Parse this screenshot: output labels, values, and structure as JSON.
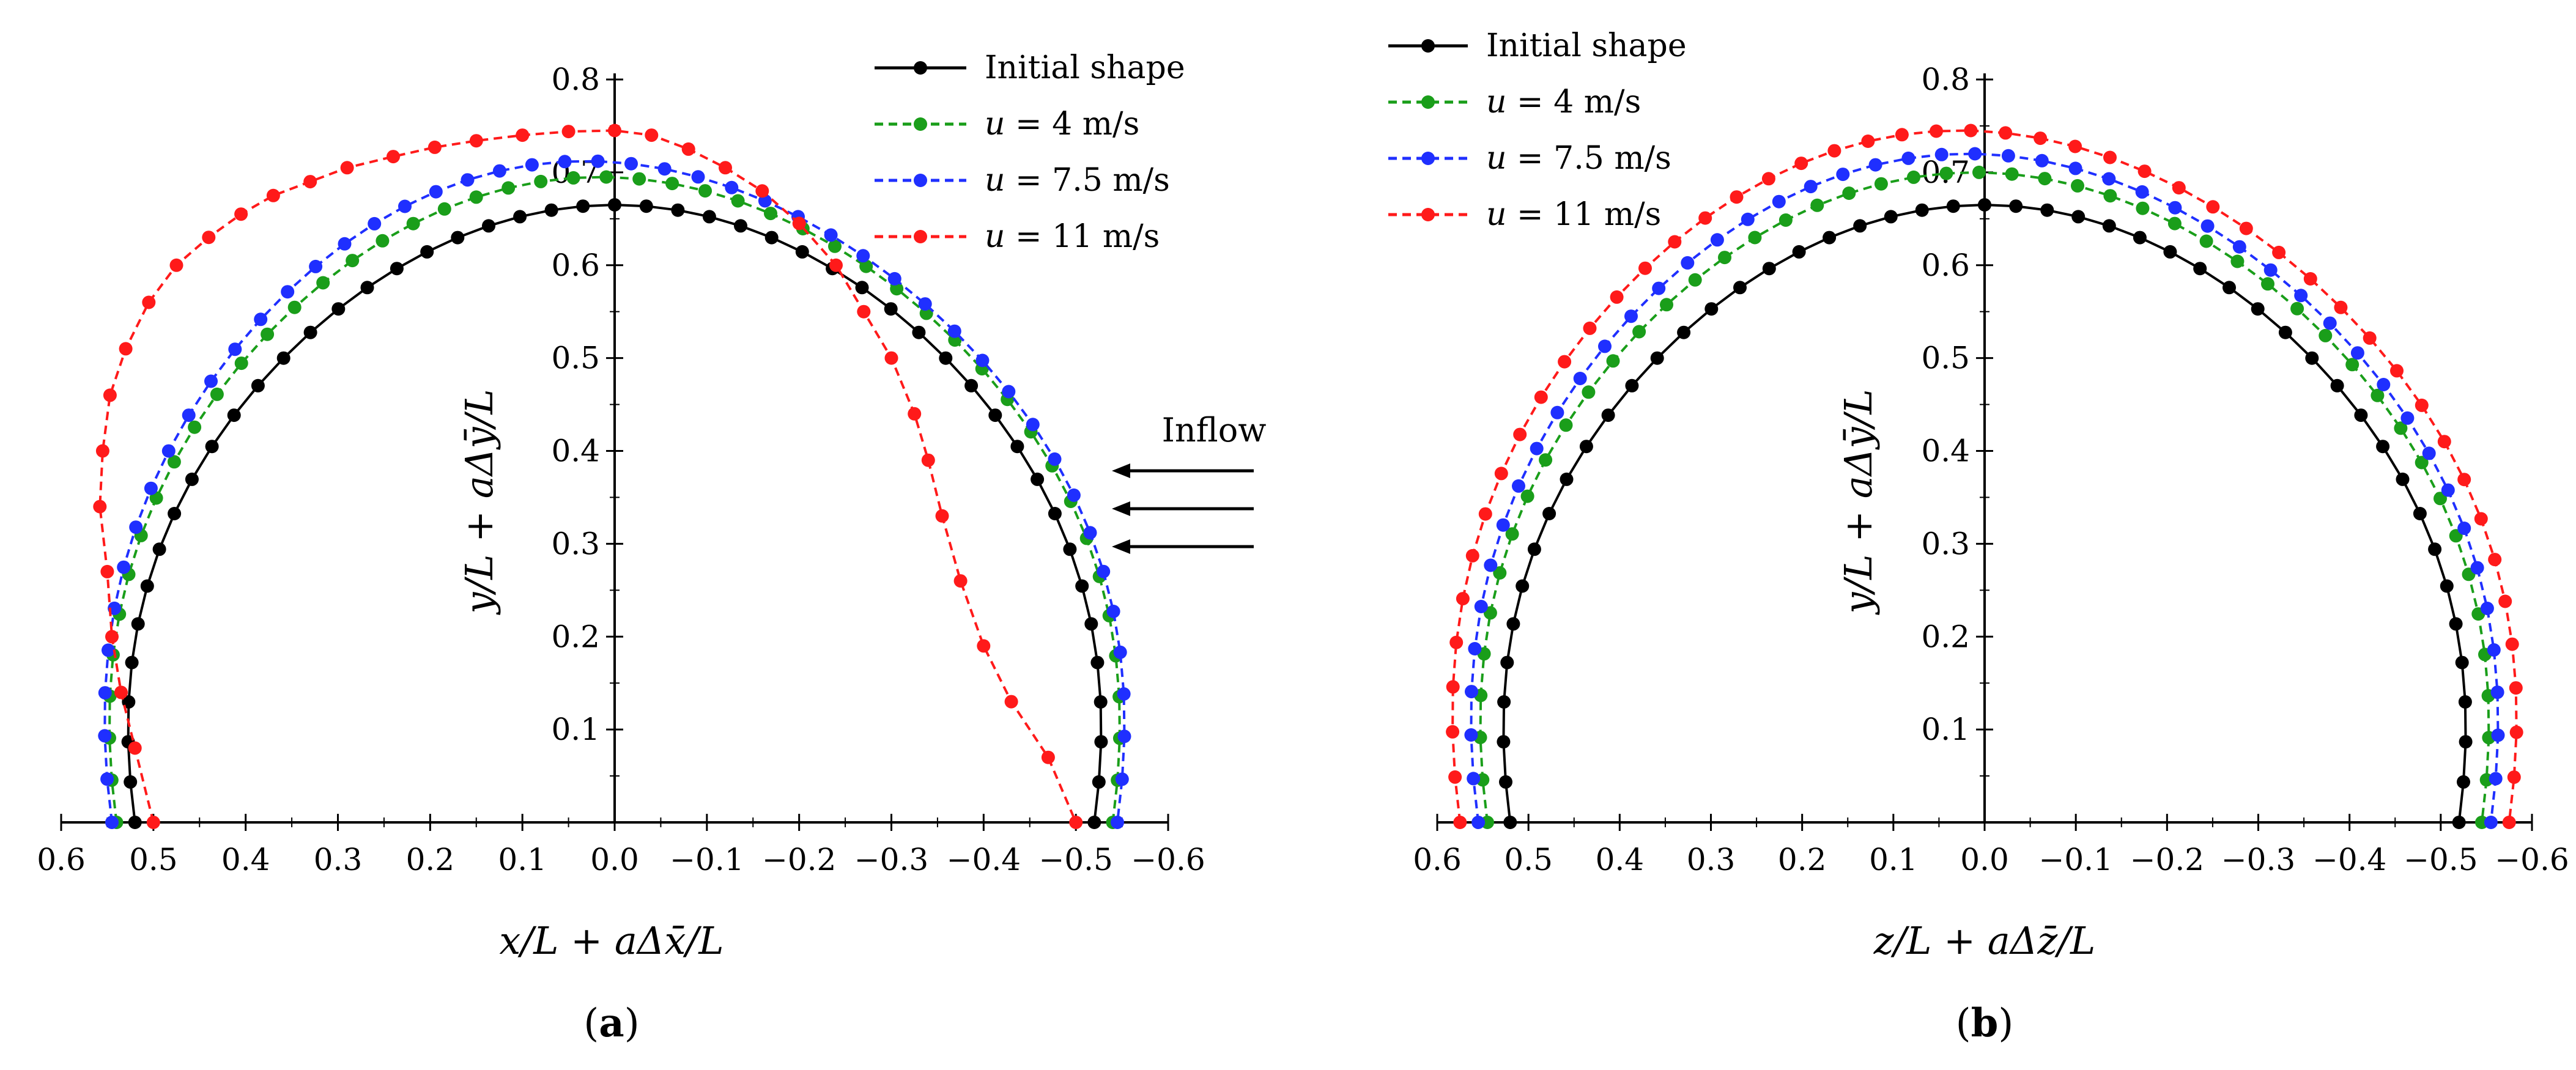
{
  "chart_data": [
    {
      "panel": "a",
      "type": "line",
      "caption_open": "(",
      "caption_letter": "a",
      "caption_close": ")",
      "xlabel": "x/L + aΔx̄/L",
      "ylabel": "y/L + aΔȳ/L",
      "xlim": [
        0.6,
        -0.6
      ],
      "ylim": [
        0,
        0.8
      ],
      "x_direction": "reversed",
      "x_ticks": [
        "0.6",
        "0.5",
        "0.4",
        "0.3",
        "0.2",
        "0.1",
        "0.0",
        "−0.1",
        "−0.2",
        "−0.3",
        "−0.4",
        "−0.5",
        "−0.6"
      ],
      "y_ticks": [
        "0.1",
        "0.2",
        "0.3",
        "0.4",
        "0.5",
        "0.6",
        "0.7",
        "0.8"
      ],
      "y_tick_values": [
        0.1,
        0.2,
        0.3,
        0.4,
        0.5,
        0.6,
        0.7,
        0.8
      ],
      "legend_position": "top-right",
      "annotation": {
        "text": "Inflow",
        "arrows": 3,
        "direction": "left"
      },
      "series": [
        {
          "name": "Initial shape",
          "color": "#000000",
          "style": "solid",
          "model": {
            "type": "arc",
            "r": 0.52,
            "ry": 0.665,
            "bulge": 0
          }
        },
        {
          "name": "u = 4 m/s",
          "color": "#1a9e1a",
          "style": "dashed",
          "model": {
            "type": "arc",
            "r": 0.54,
            "ry": 0.695,
            "bulge": 0.03
          }
        },
        {
          "name": "u = 7.5 m/s",
          "color": "#1f2fff",
          "style": "dashed",
          "model": {
            "type": "arc",
            "r": 0.545,
            "ry": 0.712,
            "bulge": 0.06
          }
        },
        {
          "name": "u = 11 m/s",
          "color": "#ff1a1a",
          "style": "dashed",
          "model": {
            "type": "waypoints"
          },
          "x": [
            0.5,
            0.52,
            0.535,
            0.545,
            0.55,
            0.558,
            0.555,
            0.547,
            0.53,
            0.505,
            0.475,
            0.44,
            0.405,
            0.37,
            0.33,
            0.29,
            0.24,
            0.195,
            0.15,
            0.1,
            0.05,
            0.0,
            -0.04,
            -0.08,
            -0.12,
            -0.16,
            -0.2,
            -0.24,
            -0.27,
            -0.3,
            -0.325,
            -0.34,
            -0.355,
            -0.375,
            -0.4,
            -0.43,
            -0.47,
            -0.5
          ],
          "y": [
            0.0,
            0.08,
            0.14,
            0.2,
            0.27,
            0.34,
            0.4,
            0.46,
            0.51,
            0.56,
            0.6,
            0.63,
            0.655,
            0.675,
            0.69,
            0.705,
            0.717,
            0.727,
            0.734,
            0.74,
            0.744,
            0.745,
            0.74,
            0.725,
            0.705,
            0.68,
            0.645,
            0.6,
            0.55,
            0.5,
            0.44,
            0.39,
            0.33,
            0.26,
            0.19,
            0.13,
            0.07,
            0.0
          ]
        }
      ],
      "legend_labels": [
        {
          "lead": "Initial shape",
          "value": ""
        },
        {
          "lead": "u",
          "value": " = 4 m/s"
        },
        {
          "lead": "u",
          "value": " = 7.5 m/s"
        },
        {
          "lead": "u",
          "value": " = 11 m/s"
        }
      ]
    },
    {
      "panel": "b",
      "type": "line",
      "caption_open": "(",
      "caption_letter": "b",
      "caption_close": ")",
      "xlabel": "z/L + aΔz̄/L",
      "ylabel": "y/L + aΔȳ/L",
      "xlim": [
        0.6,
        -0.6
      ],
      "ylim": [
        0,
        0.8
      ],
      "x_direction": "reversed",
      "x_ticks": [
        "0.6",
        "0.5",
        "0.4",
        "0.3",
        "0.2",
        "0.1",
        "0.0",
        "−0.1",
        "−0.2",
        "−0.3",
        "−0.4",
        "−0.5",
        "−0.6"
      ],
      "y_ticks": [
        "0.1",
        "0.2",
        "0.3",
        "0.4",
        "0.5",
        "0.6",
        "0.7",
        "0.8"
      ],
      "y_tick_values": [
        0.1,
        0.2,
        0.3,
        0.4,
        0.5,
        0.6,
        0.7,
        0.8
      ],
      "legend_position": "top-left",
      "series": [
        {
          "name": "Initial shape",
          "color": "#000000",
          "style": "solid",
          "model": {
            "type": "arc",
            "r": 0.52,
            "ry": 0.665,
            "bulge": 0
          }
        },
        {
          "name": "u = 4 m/s",
          "color": "#1a9e1a",
          "style": "dashed",
          "model": {
            "type": "arc",
            "r": 0.545,
            "ry": 0.7,
            "bulge": 0.02
          }
        },
        {
          "name": "u = 7.5 m/s",
          "color": "#1f2fff",
          "style": "dashed",
          "model": {
            "type": "arc",
            "r": 0.555,
            "ry": 0.72,
            "bulge": 0.035
          }
        },
        {
          "name": "u = 11 m/s",
          "color": "#ff1a1a",
          "style": "dashed",
          "model": {
            "type": "arc",
            "r": 0.575,
            "ry": 0.745,
            "bulge": 0.05
          }
        }
      ],
      "legend_labels": [
        {
          "lead": "Initial shape",
          "value": ""
        },
        {
          "lead": "u",
          "value": " = 4 m/s"
        },
        {
          "lead": "u",
          "value": " = 7.5 m/s"
        },
        {
          "lead": "u",
          "value": " = 11 m/s"
        }
      ]
    }
  ]
}
